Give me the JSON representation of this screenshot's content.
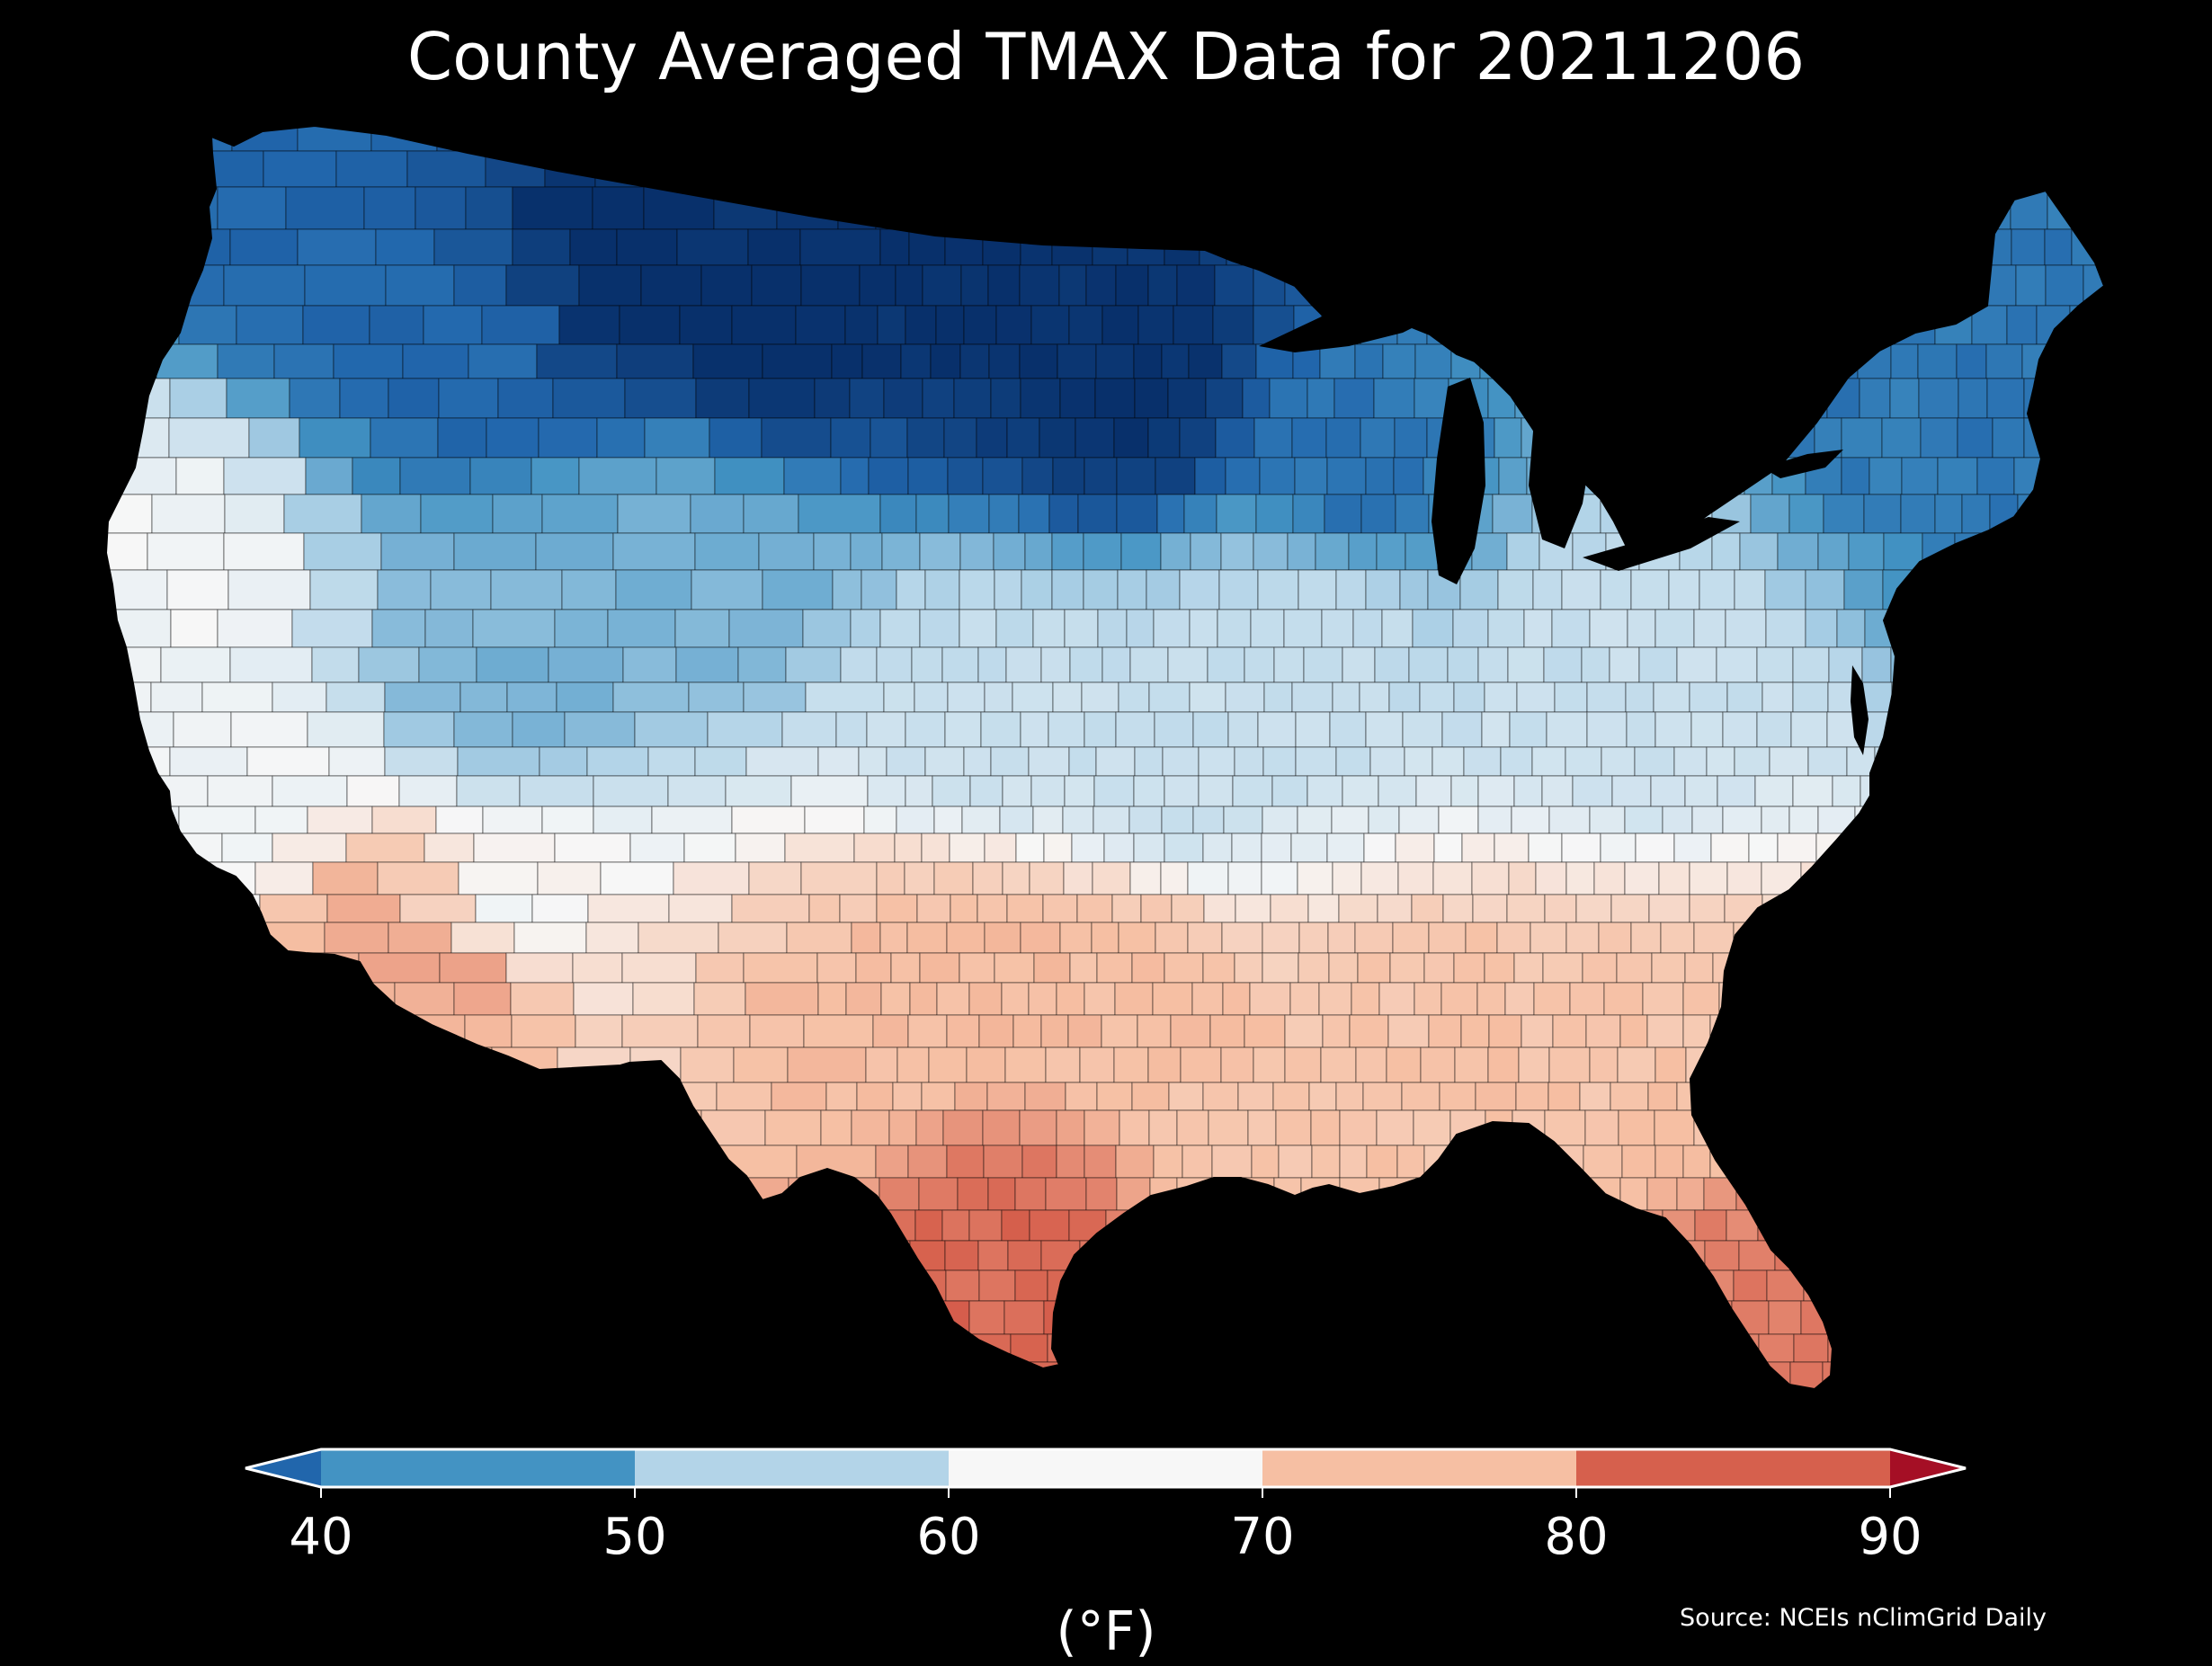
{
  "title": "County Averaged TMAX Data for 20211206",
  "source": "Source: NCEIs nClimGrid Daily",
  "colorbar": {
    "unit_label": "(°F)",
    "ticks": [
      "40",
      "50",
      "60",
      "70",
      "80",
      "90"
    ],
    "tick_values": [
      40,
      50,
      60,
      70,
      80,
      90
    ],
    "bins": [
      {
        "min": null,
        "max": 40,
        "color": "#2166ac",
        "label": "< 40"
      },
      {
        "min": 40,
        "max": 50,
        "color": "#4393c3",
        "label": "40–50"
      },
      {
        "min": 50,
        "max": 60,
        "color": "#b3d4e8",
        "label": "50–60"
      },
      {
        "min": 60,
        "max": 70,
        "color": "#f7f7f7",
        "label": "60–70"
      },
      {
        "min": 70,
        "max": 80,
        "color": "#f6bfa3",
        "label": "70–80"
      },
      {
        "min": 80,
        "max": 90,
        "color": "#d6604d",
        "label": "80–90"
      },
      {
        "min": 90,
        "max": null,
        "color": "#a50f25",
        "label": "> 90"
      }
    ],
    "extend": "both"
  },
  "map": {
    "region": "Contiguous United States counties",
    "variable": "TMAX",
    "units": "°F",
    "date": "20211206",
    "background_color": "#000000",
    "water_color": "#000000",
    "county_border_color": "#000000",
    "color_scale": "RdBu_r, continuous within 40–90 °F",
    "regional_pattern": [
      {
        "region": "Northern Plains / Upper Midwest / Montana",
        "approx_tmax_f": 30
      },
      {
        "region": "Pacific Northwest / northern Rockies",
        "approx_tmax_f": 40
      },
      {
        "region": "Great Lakes / New England",
        "approx_tmax_f": 42
      },
      {
        "region": "Great Basin / central Rockies",
        "approx_tmax_f": 50
      },
      {
        "region": "Central Plains / Ohio Valley / Mid-Atlantic",
        "approx_tmax_f": 58
      },
      {
        "region": "Central California coast / Nevada south",
        "approx_tmax_f": 64
      },
      {
        "region": "Southern Plains / Oklahoma / north Texas",
        "approx_tmax_f": 75
      },
      {
        "region": "Gulf Coast / Southeast",
        "approx_tmax_f": 74
      },
      {
        "region": "Southern Arizona / Sonoran desert",
        "approx_tmax_f": 77
      },
      {
        "region": "South Texas / Rio Grande Valley",
        "approx_tmax_f": 84
      },
      {
        "region": "South Florida",
        "approx_tmax_f": 82
      }
    ]
  }
}
